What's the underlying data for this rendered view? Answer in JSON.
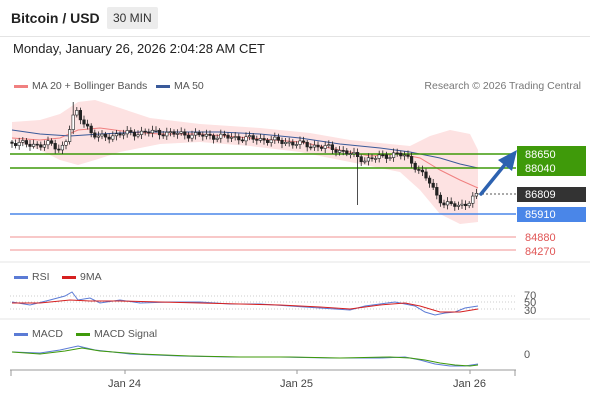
{
  "header": {
    "title": "Bitcoin / USD",
    "timeframe": "30 MIN",
    "datetime": "Monday, January 26, 2026 2:04:28 AM CET"
  },
  "legend": {
    "ma20": "MA 20 + Bollinger Bands",
    "ma50": "MA 50",
    "rsi": "RSI",
    "rsi_ma": "9MA",
    "macd": "MACD",
    "macd_signal": "MACD Signal",
    "credit": "Research © 2026 Trading Central"
  },
  "colors": {
    "ma20": "#f08080",
    "ma50": "#3a5a9a",
    "band_fill": "#fde2e2",
    "resistance": "#3f9a0a",
    "current": "#333333",
    "pivot": "#4a86e8",
    "support": "#e05555",
    "arrow": "#2d62b0",
    "rsi": "#5b7bd5",
    "rsi_ma": "#d62020",
    "macd": "#5b7bd5",
    "macd_signal": "#3f9a0a"
  },
  "chart_data": {
    "type": "candlestick",
    "price_levels": [
      {
        "label": "88650",
        "value": 88650,
        "kind": "resistance"
      },
      {
        "label": "88040",
        "value": 88040,
        "kind": "resistance"
      },
      {
        "label": "86809",
        "value": 86809,
        "kind": "current"
      },
      {
        "label": "85910",
        "value": 85910,
        "kind": "pivot"
      },
      {
        "label": "84880",
        "value": 84880,
        "kind": "support"
      },
      {
        "label": "84270",
        "value": 84270,
        "kind": "support"
      }
    ],
    "x_ticks": [
      "Jan 24",
      "Jan 25",
      "Jan 26"
    ],
    "rsi_ticks": [
      "70",
      "50",
      "30"
    ],
    "macd_ticks": [
      "0"
    ]
  }
}
